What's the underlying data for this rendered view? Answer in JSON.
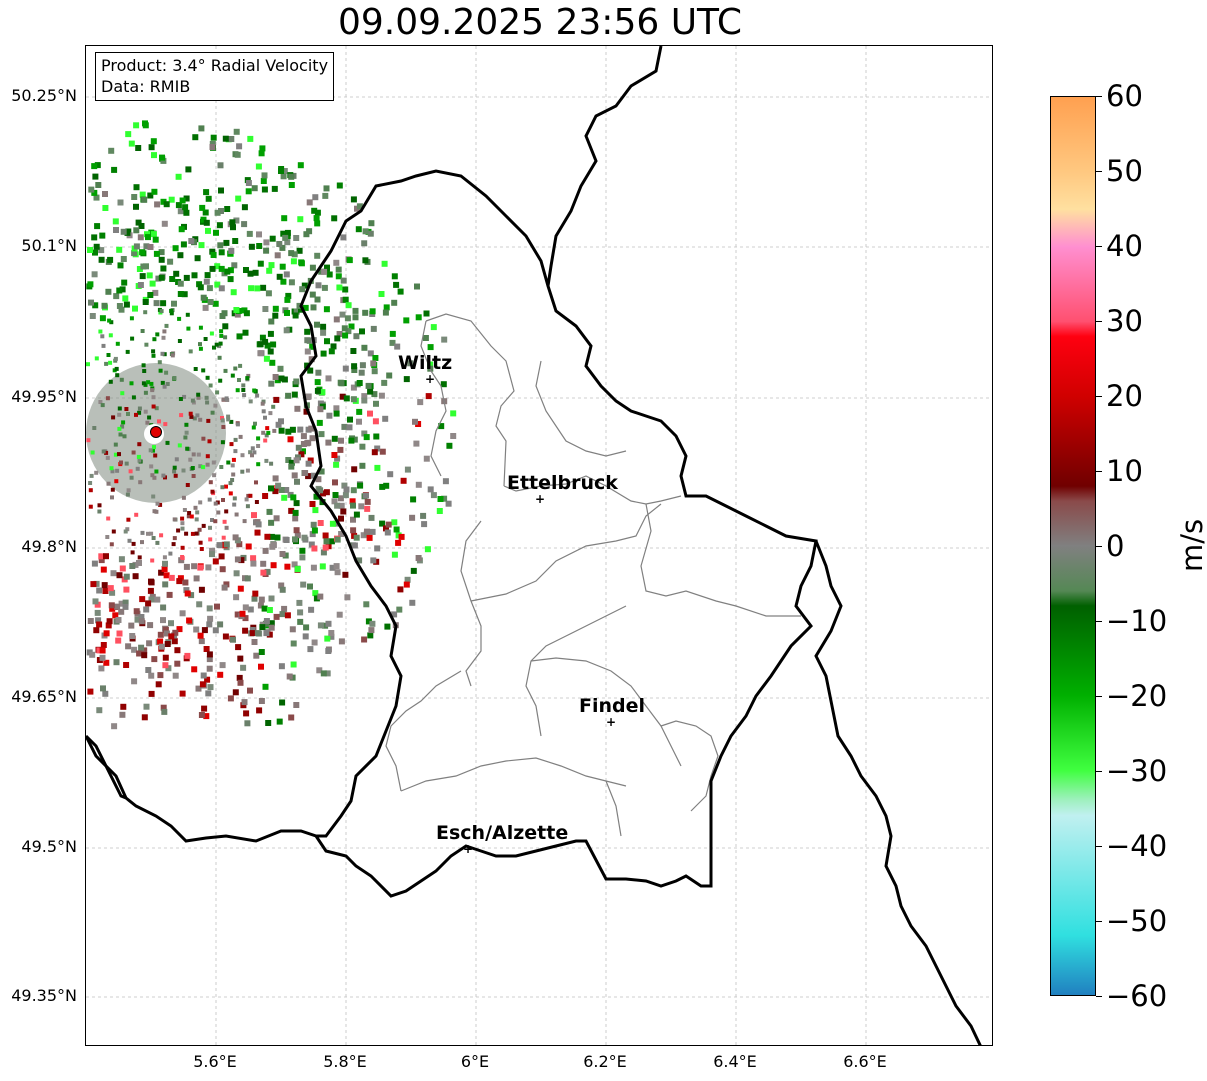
{
  "title": "09.09.2025 23:56 UTC",
  "info": {
    "product": "Product: 3.4° Radial Velocity",
    "data": "Data: RMIB"
  },
  "lat_ticks": [
    "50.25°N",
    "50.1°N",
    "49.95°N",
    "49.8°N",
    "49.65°N",
    "49.5°N",
    "49.35°N"
  ],
  "lon_ticks": [
    "5.6°E",
    "5.8°E",
    "6°E",
    "6.2°E",
    "6.4°E",
    "6.6°E"
  ],
  "cities": [
    {
      "name": "Wiltz"
    },
    {
      "name": "Ettelbruck"
    },
    {
      "name": "Findel"
    },
    {
      "name": "Esch/Alzette"
    }
  ],
  "colorbar": {
    "unit": "m/s",
    "ticks": [
      "60",
      "50",
      "40",
      "30",
      "20",
      "10",
      "0",
      "−10",
      "−20",
      "−30",
      "−40",
      "−50",
      "−60"
    ],
    "min": -60,
    "max": 60,
    "stops": [
      {
        "value": 60,
        "color": "#ffa050"
      },
      {
        "value": 50,
        "color": "#ffc880"
      },
      {
        "value": 45,
        "color": "#ffe0a0"
      },
      {
        "value": 40,
        "color": "#ff8fd0"
      },
      {
        "value": 30,
        "color": "#ff5070"
      },
      {
        "value": 28,
        "color": "#ff0010"
      },
      {
        "value": 20,
        "color": "#d00000"
      },
      {
        "value": 8,
        "color": "#700000"
      },
      {
        "value": 6,
        "color": "#8a4a4a"
      },
      {
        "value": 0,
        "color": "#808080"
      },
      {
        "value": -6,
        "color": "#558855"
      },
      {
        "value": -8,
        "color": "#006000"
      },
      {
        "value": -20,
        "color": "#00b000"
      },
      {
        "value": -30,
        "color": "#40ff40"
      },
      {
        "value": -34,
        "color": "#a0f0c0"
      },
      {
        "value": -36,
        "color": "#c0f0f0"
      },
      {
        "value": -52,
        "color": "#30e0e0"
      },
      {
        "value": -60,
        "color": "#2080c0"
      }
    ]
  },
  "radar_site_color": "#e00000",
  "border_color": "#000000",
  "canton_color": "#808080"
}
